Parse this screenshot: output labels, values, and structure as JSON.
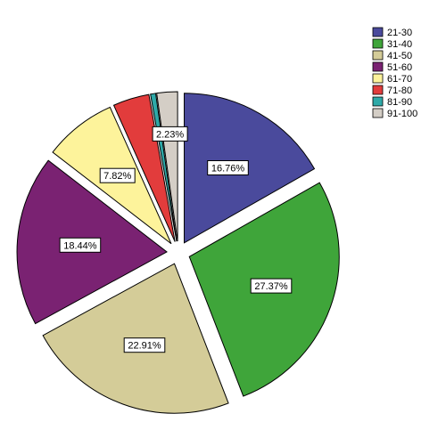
{
  "chart_data": {
    "type": "pie",
    "categories": [
      "21-30",
      "31-40",
      "41-50",
      "51-60",
      "61-70",
      "71-80",
      "81-90",
      "91-100"
    ],
    "values": [
      16.76,
      27.37,
      22.91,
      18.44,
      7.82,
      3.91,
      0.56,
      2.23
    ],
    "data_labels": [
      "16.76%",
      "27.37%",
      "22.91%",
      "18.44%",
      "7.82%",
      "",
      "",
      "2.23%"
    ],
    "colors": [
      "#4a4a9c",
      "#3fa53a",
      "#d4cc98",
      "#7a2272",
      "#fdf39b",
      "#e23c3c",
      "#2ea9a8",
      "#d4cec6"
    ],
    "exploded": true,
    "legend_position": "top-right"
  }
}
